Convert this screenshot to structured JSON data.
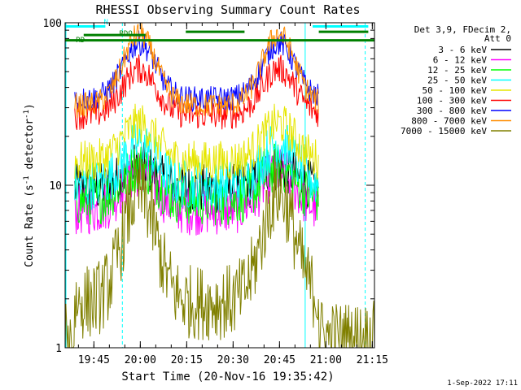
{
  "chart_data": {
    "type": "line",
    "title": "RHESSI Observing Summary Count Rates",
    "xlabel": "Start Time (20-Nov-16 19:35:42)",
    "ylabel_main": "Count Rate (s",
    "ylabel_sup1": "-1",
    "ylabel_mid": " detector",
    "ylabel_sup2": "-1",
    "ylabel_end": ")",
    "y_scale": "log",
    "ylim": [
      1,
      100
    ],
    "x_start_minutes": 0,
    "x_end_minutes": 100,
    "x_ticks": [
      {
        "label": "19:45",
        "minutes": 9.3
      },
      {
        "label": "20:00",
        "minutes": 24.3
      },
      {
        "label": "20:15",
        "minutes": 39.3
      },
      {
        "label": "20:30",
        "minutes": 54.3
      },
      {
        "label": "20:45",
        "minutes": 69.3
      },
      {
        "label": "21:00",
        "minutes": 84.3
      },
      {
        "label": "21:15",
        "minutes": 99.3
      }
    ],
    "y_ticks": [
      {
        "label": "1",
        "value": 1
      },
      {
        "label": "10",
        "value": 10
      },
      {
        "label": "100",
        "value": 100
      }
    ],
    "legend_header": [
      "Det 3,9, FDecim 2,",
      "Att 0"
    ],
    "legend_position": "right",
    "series": [
      {
        "name": "3 - 6 keV",
        "color": "#000000",
        "base": 9.5,
        "peak": 13,
        "noise": 0.06
      },
      {
        "name": "6 - 12 keV",
        "color": "#ff00ff",
        "base": 7.0,
        "peak": 12,
        "noise": 0.06
      },
      {
        "name": "12 - 25 keV",
        "color": "#00ff00",
        "base": 8.0,
        "peak": 13,
        "noise": 0.06
      },
      {
        "name": "25 - 50 keV",
        "color": "#00ffff",
        "base": 10.0,
        "peak": 18,
        "noise": 0.06
      },
      {
        "name": "50 - 100 keV",
        "color": "#e6e600",
        "base": 14.0,
        "peak": 24,
        "noise": 0.05
      },
      {
        "name": "100 - 300 keV",
        "color": "#ff0000",
        "base": 27,
        "peak": 52,
        "noise": 0.035
      },
      {
        "name": "300 - 800 keV",
        "color": "#0000ff",
        "base": 34,
        "peak": 75,
        "noise": 0.03
      },
      {
        "name": "800 - 7000 keV",
        "color": "#ff8c00",
        "base": 31,
        "peak": 85,
        "noise": 0.03
      },
      {
        "name": "7000 - 15000 keV",
        "color": "#808000",
        "base": 1.9,
        "peak": 9,
        "noise": 0.09
      }
    ],
    "orbit_peaks_minutes": [
      24,
      69
    ],
    "saa_intervals_minutes": [
      [
        -1,
        3
      ],
      [
        82,
        100
      ]
    ],
    "night_intervals_minutes": [
      [
        11,
        16
      ],
      [
        73,
        84
      ]
    ],
    "flag_bars": [
      {
        "name": "N",
        "color": "#00ffff",
        "level": 95,
        "segments": [
          [
            0,
            13
          ],
          [
            80,
            98
          ]
        ]
      },
      {
        "name": "RDO",
        "color": "#008000",
        "level": 84,
        "segments": [
          [
            6,
            26
          ]
        ]
      },
      {
        "name": "RD0",
        "color": "#008000",
        "level": 78,
        "segments": [
          [
            0,
            100
          ]
        ]
      },
      {
        "name": "D",
        "color": "#008000",
        "level": 88,
        "segments": [
          [
            39,
            58
          ],
          [
            82,
            98
          ]
        ]
      }
    ],
    "flag_labels": {
      "n": "N",
      "rdo_left": "RD",
      "rdo_right": "RDO"
    },
    "dashed_lines_minutes": [
      18.5,
      97
    ],
    "solid_lines_minutes": [
      77.6
    ]
  },
  "footer_timestamp": "1-Sep-2022 17:11"
}
